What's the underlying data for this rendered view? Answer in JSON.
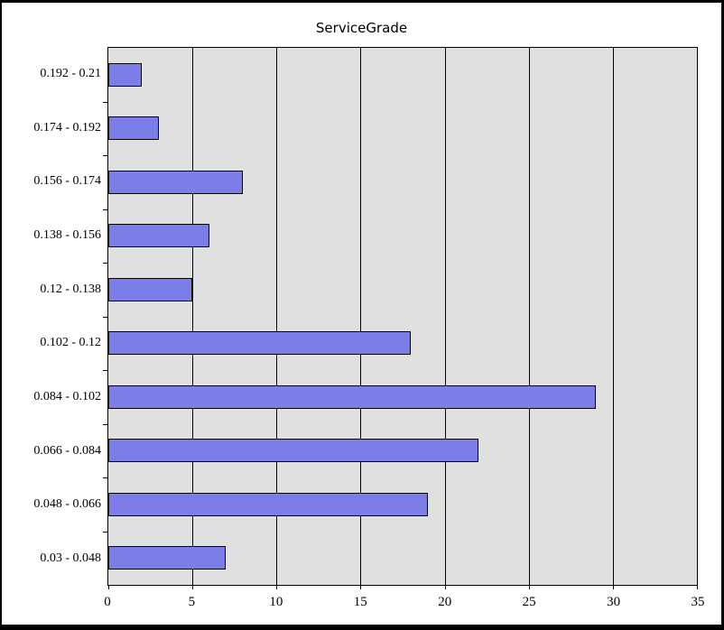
{
  "window": {
    "background": "#ffffff",
    "border_color": "#000000"
  },
  "chart_data": {
    "type": "bar",
    "orientation": "horizontal",
    "title": "ServiceGrade",
    "categories": [
      "0.192 - 0.21",
      "0.174 - 0.192",
      "0.156 - 0.174",
      "0.138 - 0.156",
      "0.12 - 0.138",
      "0.102 - 0.12",
      "0.084 - 0.102",
      "0.066 - 0.084",
      "0.048 - 0.066",
      "0.03 - 0.048"
    ],
    "values": [
      2,
      3,
      8,
      6,
      5,
      18,
      29,
      22,
      19,
      7
    ],
    "xlabel": "",
    "ylabel": "",
    "xlim": [
      0,
      35
    ],
    "x_ticks": [
      0,
      5,
      10,
      15,
      20,
      25,
      30,
      35
    ],
    "grid": "vertical",
    "legend": false,
    "colors": {
      "bar_fill": "#7d7de8",
      "bar_border": "#000000",
      "plot_background": "#e0e0e0",
      "gridline": "#000000",
      "text": "#000000"
    }
  }
}
